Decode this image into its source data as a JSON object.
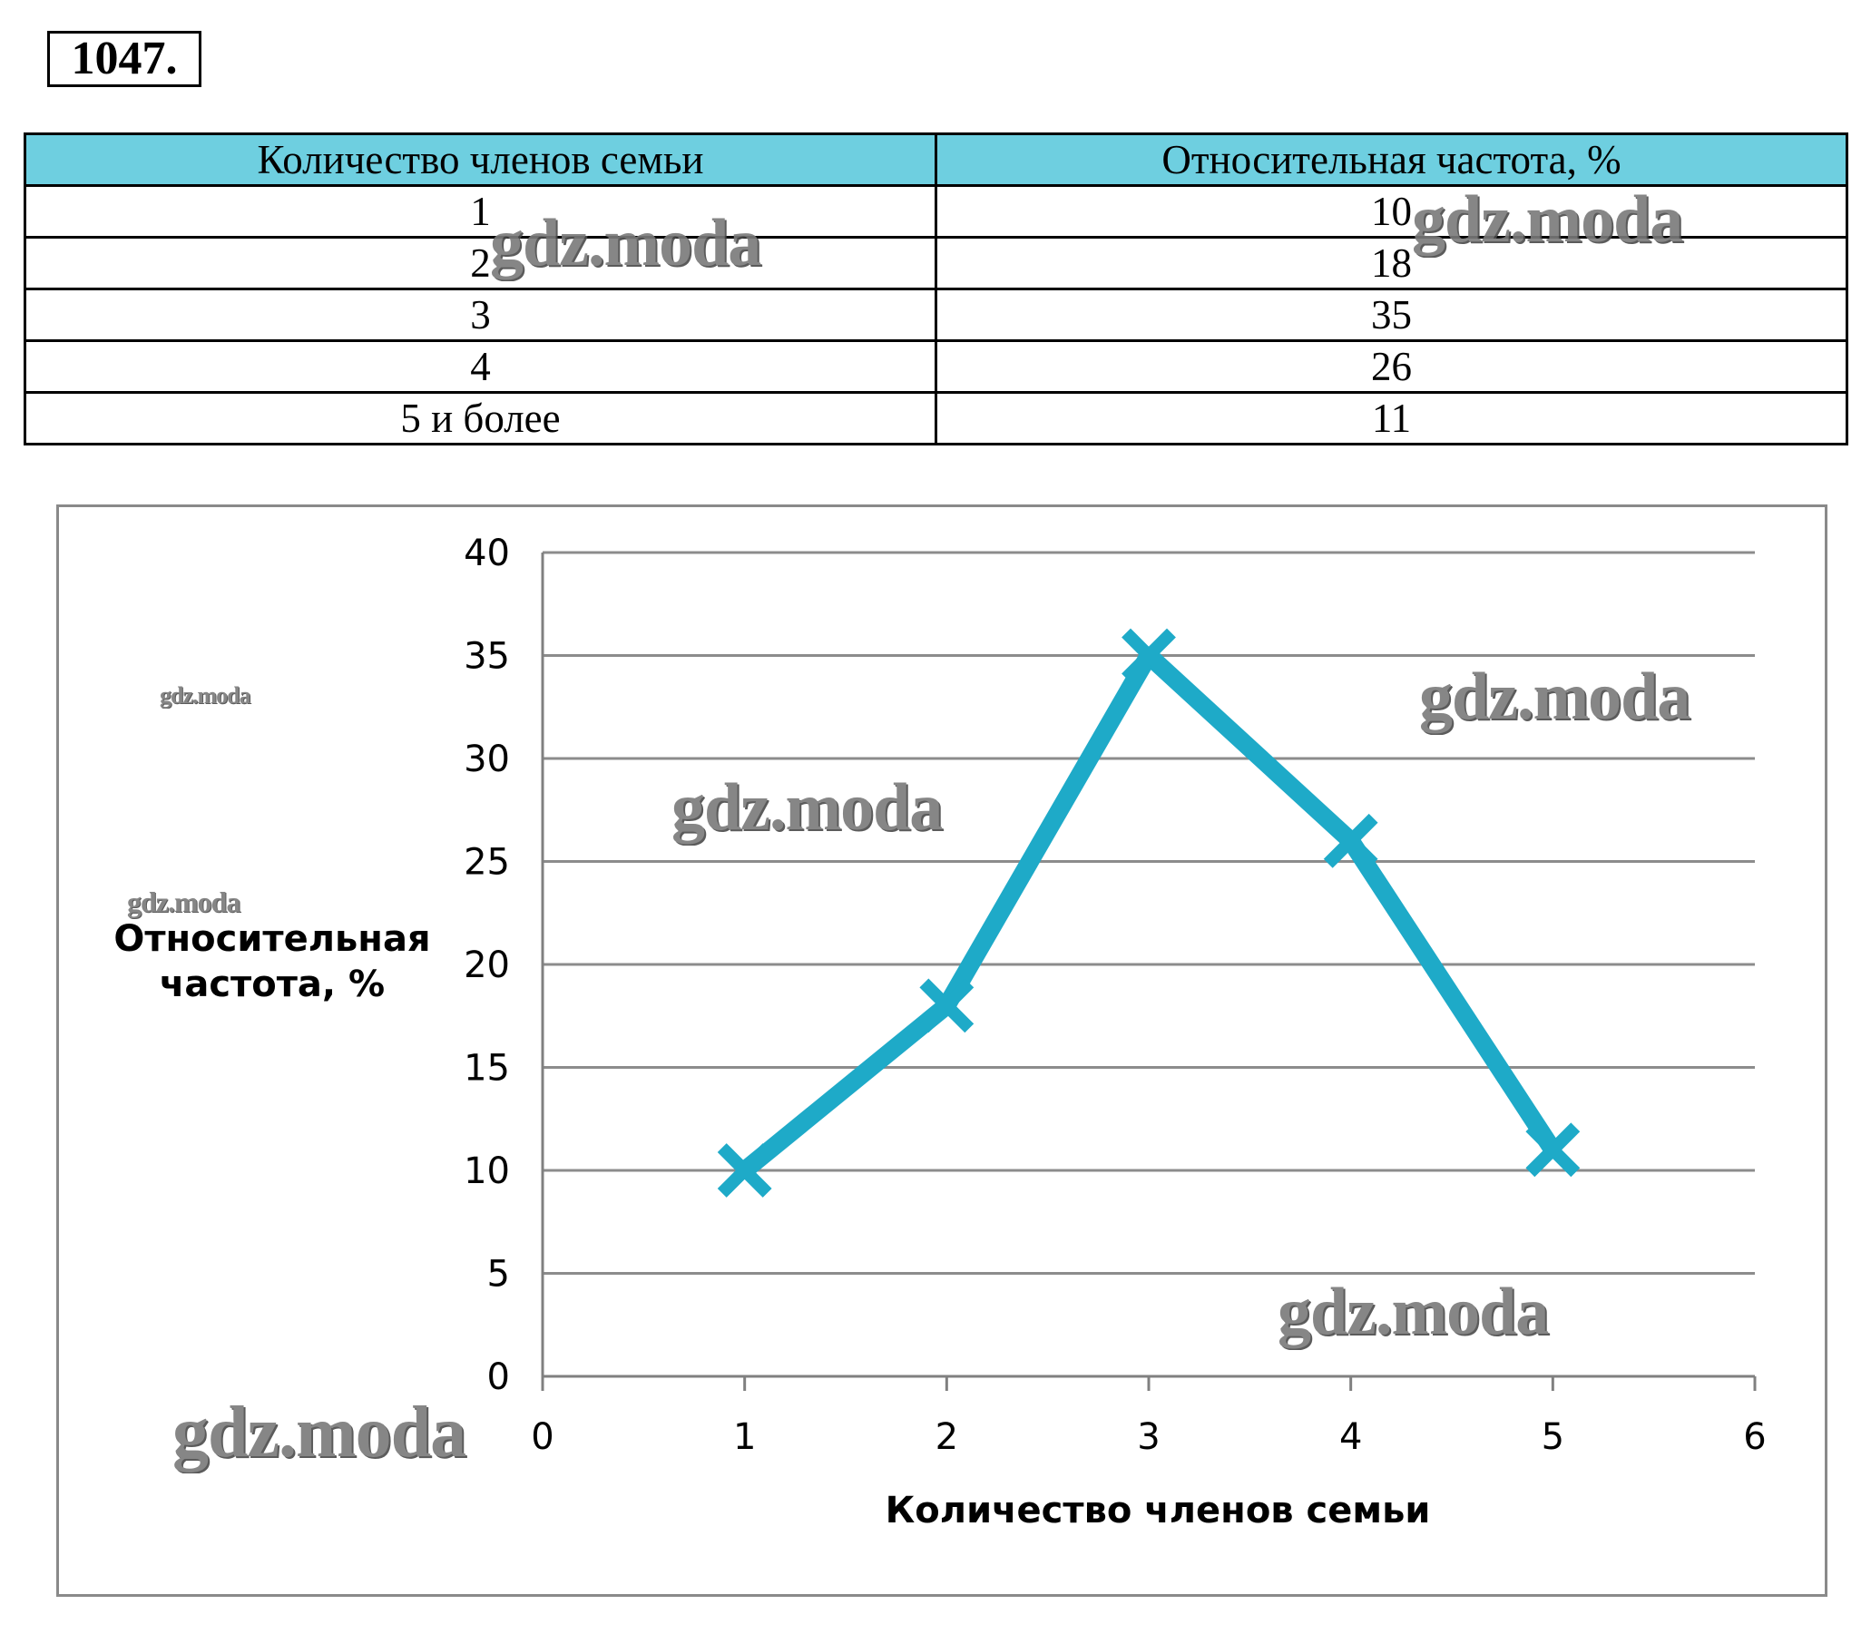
{
  "problem": {
    "number": "1047."
  },
  "table": {
    "headers": [
      "Количество членов семьи",
      "Относительная частота, %"
    ],
    "rows": [
      [
        "1",
        "10"
      ],
      [
        "2",
        "18"
      ],
      [
        "3",
        "35"
      ],
      [
        "4",
        "26"
      ],
      [
        "5 и более",
        "11"
      ]
    ]
  },
  "watermark_text": "gdz.moda",
  "chart_data": {
    "type": "line",
    "x": [
      1,
      2,
      3,
      4,
      5
    ],
    "series": [
      {
        "values": [
          10,
          18,
          35,
          26,
          11
        ],
        "color": "#1eaac8"
      }
    ],
    "xlabel": "Количество членов семьи",
    "ylabel": "Относительная частота, %",
    "xlim": [
      0,
      6
    ],
    "ylim": [
      0,
      40
    ],
    "xticks": [
      "0",
      "1",
      "2",
      "3",
      "4",
      "5",
      "6"
    ],
    "yticks": [
      "0",
      "5",
      "10",
      "15",
      "20",
      "25",
      "30",
      "35",
      "40"
    ],
    "grid": "horizontal",
    "marker": "cross"
  }
}
